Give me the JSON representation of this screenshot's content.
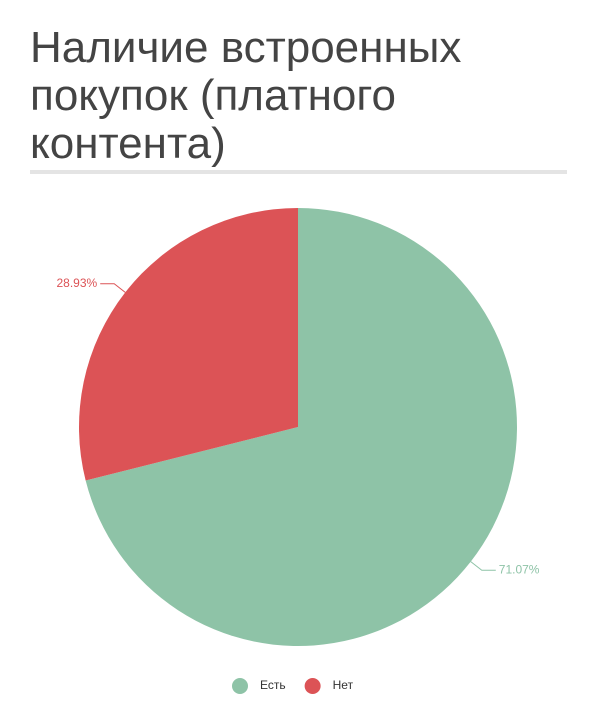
{
  "chart_data": {
    "type": "pie",
    "title": "Наличие встроенных покупок (платного контента)",
    "categories": [
      "Есть",
      "Нет"
    ],
    "values": [
      71.07,
      28.93
    ],
    "value_labels": [
      "71.07%",
      "28.93%"
    ],
    "colors": [
      "#8ec3a7",
      "#dc5356"
    ]
  }
}
